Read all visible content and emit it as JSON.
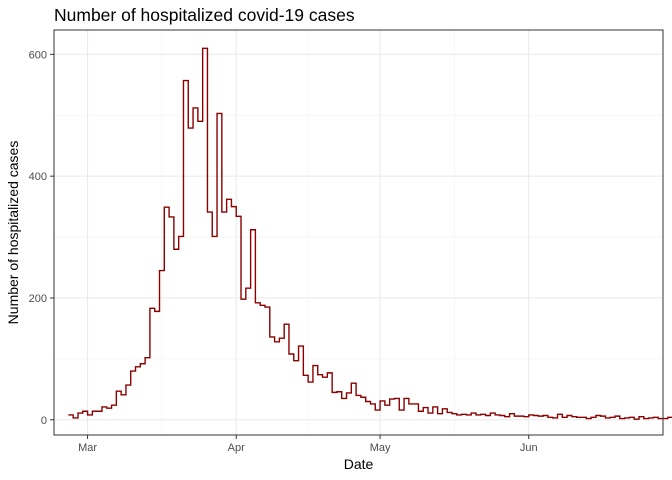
{
  "chart_data": {
    "type": "line",
    "step": true,
    "title": "Number of hospitalized covid-19 cases",
    "xlabel": "Date",
    "ylabel": "Number of hospitalized cases",
    "x_start": "2020-02-26",
    "x_end": "2020-06-25",
    "xlim": [
      "2020-02-23",
      "2020-06-29"
    ],
    "ylim": [
      -25,
      640
    ],
    "x_ticks": [
      {
        "date": "2020-03-01",
        "label": "Mar"
      },
      {
        "date": "2020-04-01",
        "label": "Apr"
      },
      {
        "date": "2020-05-01",
        "label": "May"
      },
      {
        "date": "2020-06-01",
        "label": "Jun"
      }
    ],
    "y_ticks": [
      0,
      200,
      400,
      600
    ],
    "grid": true,
    "line_color": "#8b0000",
    "values": [
      8,
      3,
      11,
      14,
      8,
      14,
      14,
      21,
      19,
      24,
      47,
      41,
      57,
      80,
      87,
      92,
      102,
      183,
      178,
      245,
      349,
      333,
      280,
      301,
      557,
      479,
      512,
      490,
      610,
      341,
      301,
      503,
      341,
      362,
      350,
      334,
      198,
      216,
      312,
      192,
      188,
      185,
      136,
      128,
      134,
      157,
      108,
      97,
      121,
      73,
      62,
      89,
      74,
      70,
      77,
      45,
      46,
      35,
      44,
      60,
      40,
      37,
      30,
      26,
      16,
      31,
      24,
      34,
      35,
      16,
      35,
      26,
      26,
      14,
      20,
      11,
      21,
      10,
      18,
      12,
      10,
      8,
      9,
      8,
      11,
      8,
      9,
      7,
      11,
      8,
      7,
      5,
      10,
      6,
      6,
      5,
      8,
      7,
      6,
      7,
      4,
      3,
      9,
      4,
      7,
      5,
      4,
      4,
      2,
      4,
      7,
      6,
      3,
      4,
      6,
      2,
      3,
      4,
      1,
      5,
      2,
      3,
      4,
      2,
      2,
      4,
      3,
      1
    ]
  }
}
